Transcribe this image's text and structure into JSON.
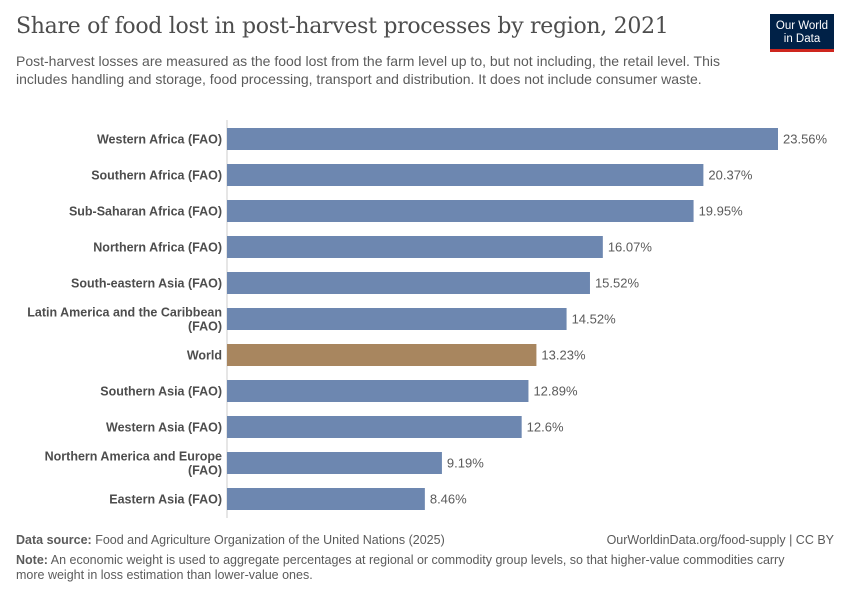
{
  "header": {
    "title": "Share of food lost in post-harvest processes by region, 2021",
    "subtitle": "Post-harvest losses are measured as the food lost from the farm level up to, but not including, the retail level. This includes handling and storage, food processing, transport and distribution. It does not include consumer waste.",
    "logo_text": "Our World in Data"
  },
  "chart_data": {
    "type": "bar",
    "orientation": "horizontal",
    "categories": [
      "Western Africa (FAO)",
      "Southern Africa (FAO)",
      "Sub-Saharan Africa (FAO)",
      "Northern Africa (FAO)",
      "South-eastern Asia (FAO)",
      "Latin America and the Caribbean (FAO)",
      "World",
      "Southern Asia (FAO)",
      "Western Asia (FAO)",
      "Northern America and Europe (FAO)",
      "Eastern Asia (FAO)"
    ],
    "values": [
      23.56,
      20.37,
      19.95,
      16.07,
      15.52,
      14.52,
      13.23,
      12.89,
      12.6,
      9.19,
      8.46
    ],
    "value_labels": [
      "23.56%",
      "20.37%",
      "19.95%",
      "16.07%",
      "15.52%",
      "14.52%",
      "13.23%",
      "12.89%",
      "12.6%",
      "9.19%",
      "8.46%"
    ],
    "unit": "%",
    "colors": {
      "default": "#6d87b0",
      "highlight": "#a8865f"
    },
    "highlight": "World",
    "xlim": [
      0,
      23.56
    ]
  },
  "footer": {
    "source_label": "Data source:",
    "source": "Food and Agriculture Organization of the United Nations (2025)",
    "url": "OurWorldinData.org/food-supply | CC BY",
    "note_label": "Note:",
    "note": "An economic weight is used to aggregate percentages at regional or commodity group levels, so that higher-value commodities carry more weight in loss estimation than lower-value ones."
  }
}
